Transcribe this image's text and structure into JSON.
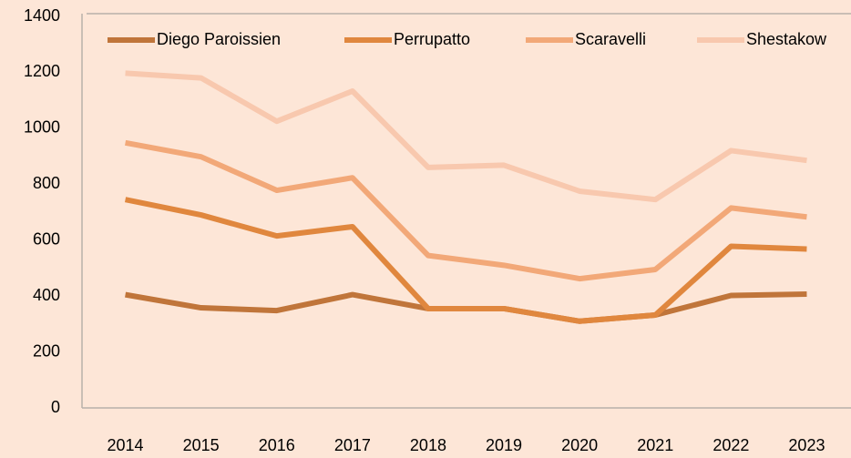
{
  "chart_data": {
    "type": "line",
    "stacked": true,
    "categories": [
      "2014",
      "2015",
      "2016",
      "2017",
      "2018",
      "2019",
      "2020",
      "2021",
      "2022",
      "2023"
    ],
    "series": [
      {
        "name": "Diego Paroissien",
        "color": "#c0753a",
        "values": [
          405,
          358,
          348,
          405,
          355,
          355,
          310,
          332,
          402,
          407
        ]
      },
      {
        "name": "Perrupatto",
        "color": "#e0873e",
        "values": [
          340,
          332,
          267,
          243,
          0,
          0,
          0,
          0,
          176,
          161
        ]
      },
      {
        "name": "Scaravelli",
        "color": "#f2a878",
        "values": [
          203,
          208,
          163,
          175,
          190,
          155,
          152,
          163,
          137,
          115
        ]
      },
      {
        "name": "Shestakow",
        "color": "#f8c8ae",
        "values": [
          249,
          282,
          247,
          310,
          315,
          358,
          313,
          250,
          205,
          202
        ]
      }
    ],
    "ylim": [
      0,
      1400
    ],
    "yticks": [
      0,
      200,
      400,
      600,
      800,
      1000,
      1200,
      1400
    ],
    "legend": "top"
  }
}
